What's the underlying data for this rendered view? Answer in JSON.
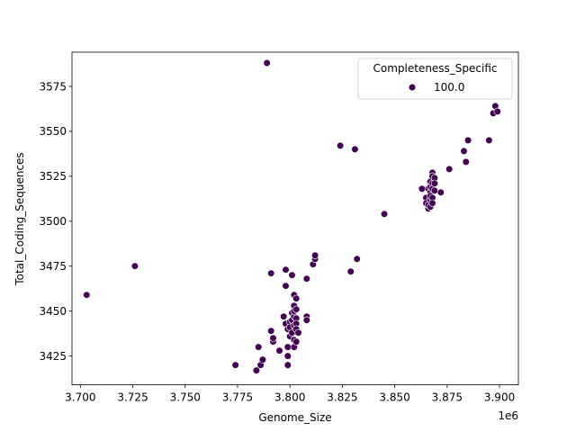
{
  "chart_data": {
    "type": "scatter",
    "title": "",
    "xlabel": "Genome_Size",
    "ylabel": "Total_Coding_Sequences",
    "x_offset_label": "1e6",
    "xlim": [
      3.696,
      3.909
    ],
    "ylim": [
      3409,
      3594
    ],
    "x_ticks": [
      3.7,
      3.725,
      3.75,
      3.775,
      3.8,
      3.825,
      3.85,
      3.875,
      3.9
    ],
    "x_tick_labels": [
      "3.700",
      "3.725",
      "3.750",
      "3.775",
      "3.800",
      "3.825",
      "3.850",
      "3.875",
      "3.900"
    ],
    "y_ticks": [
      3425,
      3450,
      3475,
      3500,
      3525,
      3550,
      3575
    ],
    "y_tick_labels": [
      "3425",
      "3450",
      "3475",
      "3500",
      "3525",
      "3550",
      "3575"
    ],
    "grid": false,
    "legend": {
      "title": "Completeness_Specific",
      "placement": "upper-right",
      "entries": [
        {
          "label": "100.0",
          "color": "#440154"
        }
      ]
    },
    "series": [
      {
        "name": "100.0",
        "color": "#440154",
        "points": [
          [
            3.703,
            3459
          ],
          [
            3.726,
            3475
          ],
          [
            3.774,
            3420
          ],
          [
            3.784,
            3417
          ],
          [
            3.785,
            3430
          ],
          [
            3.786,
            3420
          ],
          [
            3.787,
            3423
          ],
          [
            3.789,
            3588
          ],
          [
            3.791,
            3471
          ],
          [
            3.791,
            3439
          ],
          [
            3.792,
            3433
          ],
          [
            3.792,
            3435
          ],
          [
            3.795,
            3428
          ],
          [
            3.797,
            3447
          ],
          [
            3.798,
            3473
          ],
          [
            3.798,
            3464
          ],
          [
            3.798,
            3443
          ],
          [
            3.799,
            3440
          ],
          [
            3.799,
            3420
          ],
          [
            3.799,
            3425
          ],
          [
            3.799,
            3430
          ],
          [
            3.8,
            3436
          ],
          [
            3.8,
            3444
          ],
          [
            3.8,
            3441
          ],
          [
            3.801,
            3470
          ],
          [
            3.801,
            3449
          ],
          [
            3.801,
            3445
          ],
          [
            3.801,
            3438
          ],
          [
            3.802,
            3442
          ],
          [
            3.802,
            3447
          ],
          [
            3.802,
            3450
          ],
          [
            3.802,
            3453
          ],
          [
            3.802,
            3459
          ],
          [
            3.802,
            3434
          ],
          [
            3.802,
            3430
          ],
          [
            3.803,
            3457
          ],
          [
            3.803,
            3451
          ],
          [
            3.803,
            3446
          ],
          [
            3.803,
            3443
          ],
          [
            3.803,
            3440
          ],
          [
            3.803,
            3433
          ],
          [
            3.804,
            3438
          ],
          [
            3.808,
            3468
          ],
          [
            3.808,
            3447
          ],
          [
            3.808,
            3445
          ],
          [
            3.811,
            3476
          ],
          [
            3.812,
            3479
          ],
          [
            3.812,
            3481
          ],
          [
            3.824,
            3542
          ],
          [
            3.829,
            3472
          ],
          [
            3.831,
            3540
          ],
          [
            3.832,
            3479
          ],
          [
            3.845,
            3504
          ],
          [
            3.863,
            3518
          ],
          [
            3.865,
            3513
          ],
          [
            3.865,
            3510
          ],
          [
            3.866,
            3518
          ],
          [
            3.866,
            3507
          ],
          [
            3.866,
            3509
          ],
          [
            3.867,
            3522
          ],
          [
            3.867,
            3516
          ],
          [
            3.867,
            3512
          ],
          [
            3.867,
            3508
          ],
          [
            3.867,
            3514
          ],
          [
            3.867,
            3519
          ],
          [
            3.868,
            3527
          ],
          [
            3.868,
            3525
          ],
          [
            3.868,
            3521
          ],
          [
            3.868,
            3518
          ],
          [
            3.868,
            3513
          ],
          [
            3.868,
            3510
          ],
          [
            3.869,
            3524
          ],
          [
            3.869,
            3521
          ],
          [
            3.869,
            3517
          ],
          [
            3.872,
            3516
          ],
          [
            3.876,
            3529
          ],
          [
            3.883,
            3539
          ],
          [
            3.884,
            3533
          ],
          [
            3.885,
            3545
          ],
          [
            3.895,
            3545
          ],
          [
            3.897,
            3560
          ],
          [
            3.898,
            3564
          ],
          [
            3.899,
            3561
          ]
        ]
      }
    ]
  }
}
